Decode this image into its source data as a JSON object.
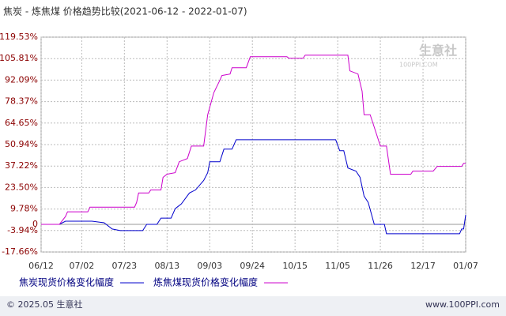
{
  "chart_data": {
    "type": "line",
    "title": "焦炭 - 炼焦煤 价格趋势比较(2021-06-12 - 2022-01-07)",
    "watermark": "生意社",
    "watermark_sub": "100PPI.COM",
    "footer_left": "© 2025.05 生意社",
    "footer_right": "www.100PPI.com",
    "xlim": [
      "06/12",
      "01/07"
    ],
    "xticks": [
      "06/12",
      "07/02",
      "07/23",
      "08/13",
      "09/03",
      "09/24",
      "10/15",
      "11/05",
      "11/26",
      "12/17",
      "01/07"
    ],
    "ylim": [
      -17.66,
      119.53
    ],
    "yticks": [
      {
        "value": -17.66,
        "label": "-17.66%"
      },
      {
        "value": -3.94,
        "label": "-3.94%"
      },
      0,
      {
        "value": 9.78,
        "label": "9.78%"
      },
      {
        "value": 23.5,
        "label": "23.50%"
      },
      {
        "value": 37.22,
        "label": "37.22%"
      },
      {
        "value": 50.94,
        "label": "50.94%"
      },
      {
        "value": 64.65,
        "label": "64.65%"
      },
      {
        "value": 78.37,
        "label": "78.37%"
      },
      {
        "value": 92.09,
        "label": "92.09%"
      },
      {
        "value": 105.81,
        "label": "105.81%"
      },
      {
        "value": 119.53,
        "label": "119.53%"
      }
    ],
    "grid": true,
    "series": [
      {
        "name": "焦炭现货价格变化幅度",
        "color": "#0000cc",
        "x": [
          "06/12",
          "06/21",
          "06/24",
          "07/07",
          "07/13",
          "07/17",
          "07/21",
          "08/01",
          "08/03",
          "08/08",
          "08/10",
          "08/15",
          "08/17",
          "08/18",
          "08/20",
          "08/24",
          "08/27",
          "08/31",
          "09/02",
          "09/03",
          "09/08",
          "09/10",
          "09/14",
          "09/16",
          "11/04",
          "11/06",
          "11/08",
          "11/10",
          "11/14",
          "11/16",
          "11/18",
          "11/20",
          "11/23",
          "11/28",
          "11/29",
          "01/04",
          "01/05",
          "01/06",
          "01/07"
        ],
        "values": [
          0,
          0,
          2,
          2,
          1,
          -3,
          -4,
          -4,
          0,
          0,
          4,
          4,
          10,
          11,
          13,
          20,
          22,
          28,
          33,
          40,
          40,
          48,
          48,
          54,
          54,
          47,
          47,
          36,
          34,
          30,
          18,
          14,
          0,
          0,
          -6,
          -6,
          -3,
          -3,
          6
        ]
      },
      {
        "name": "炼焦煤现货价格变化幅度",
        "color": "#cc00cc",
        "x": [
          "06/12",
          "06/21",
          "06/24",
          "06/25",
          "07/05",
          "07/06",
          "07/28",
          "07/29",
          "07/30",
          "08/04",
          "08/05",
          "08/10",
          "08/11",
          "08/13",
          "08/17",
          "08/19",
          "08/23",
          "08/25",
          "08/31",
          "09/02",
          "09/05",
          "09/08",
          "09/09",
          "09/13",
          "09/14",
          "09/21",
          "09/23",
          "10/11",
          "10/12",
          "10/19",
          "10/20",
          "11/10",
          "11/11",
          "11/15",
          "11/17",
          "11/18",
          "11/21",
          "11/22",
          "11/26",
          "11/29",
          "12/01",
          "12/11",
          "12/12",
          "12/22",
          "12/24",
          "01/05",
          "01/06",
          "01/07"
        ],
        "values": [
          0,
          0,
          5,
          8,
          8,
          11,
          11,
          14,
          20,
          20,
          22,
          22,
          30,
          32,
          33,
          40,
          42,
          50,
          50,
          70,
          84,
          92,
          95,
          96,
          100,
          100,
          107,
          107,
          106,
          106,
          108,
          108,
          98,
          96,
          85,
          70,
          70,
          66,
          50,
          50,
          32,
          32,
          34,
          34,
          37,
          37,
          39,
          39
        ]
      }
    ]
  }
}
